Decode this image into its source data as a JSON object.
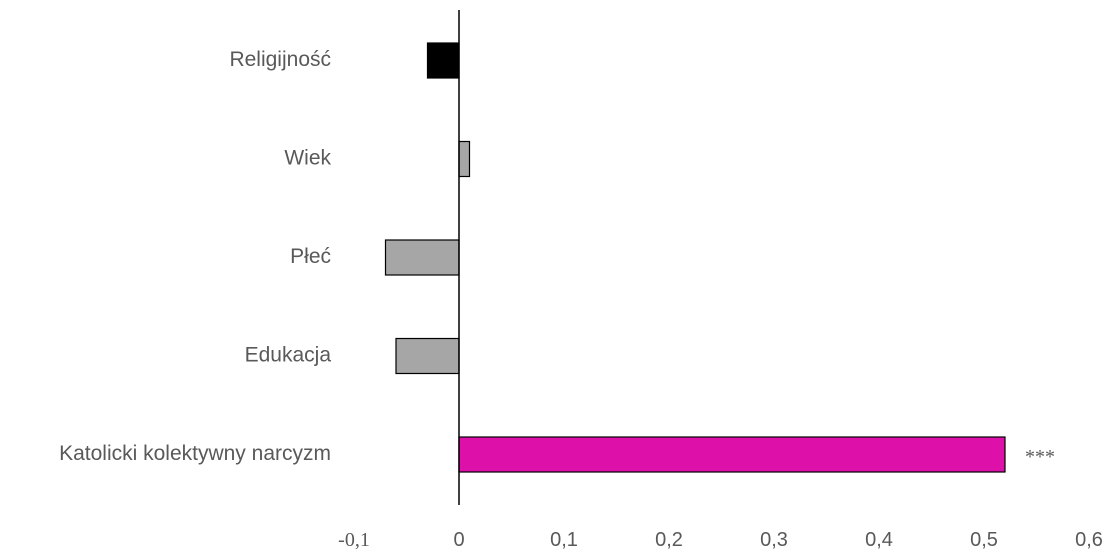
{
  "chart_data": {
    "type": "bar",
    "orientation": "horizontal",
    "categories": [
      "Religijność",
      "Wiek",
      "Płeć",
      "Edukacja",
      "Katolicki kolektywny narcyzm"
    ],
    "values": [
      -0.03,
      0.01,
      -0.07,
      -0.06,
      0.52
    ],
    "colors": [
      "#000000",
      "#a6a6a6",
      "#a6a6a6",
      "#a6a6a6",
      "#dd11aa"
    ],
    "annotations": [
      "",
      "",
      "",
      "",
      "***"
    ],
    "xlim": [
      -0.1,
      0.6
    ],
    "xticks": [
      -0.1,
      0,
      0.1,
      0.2,
      0.3,
      0.4,
      0.5,
      0.6
    ],
    "xtick_labels": [
      "-0,1",
      "0",
      "0,1",
      "0,2",
      "0,3",
      "0,4",
      "0,5",
      "0,6"
    ],
    "grid": false
  }
}
